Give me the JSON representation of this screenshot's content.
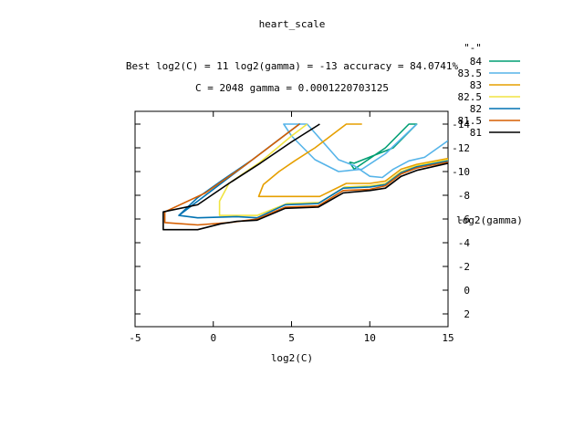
{
  "chart_data": {
    "type": "line",
    "title": "heart_scale",
    "subtitle_line1": "Best log2(C) = 11  log2(gamma) = -13  accuracy = 84.0741%",
    "subtitle_line2": "C = 2048  gamma = 0.0001220703125",
    "xlabel": "log2(C)",
    "ylabel": "log2(gamma)",
    "xlim": [
      -5,
      15
    ],
    "ylim": [
      3,
      -15
    ],
    "xticks": [
      -5,
      0,
      5,
      10,
      15
    ],
    "yticks": [
      2,
      0,
      -2,
      -4,
      -6,
      -8,
      -10,
      -12,
      -14
    ],
    "legend_title": "\"-\"",
    "legend_position": "top-right",
    "series": [
      {
        "name": "84",
        "color": "#009e73",
        "points": [
          [
            8.7,
            -10.8
          ],
          [
            9.0,
            -10.2
          ],
          [
            11.0,
            -12.0
          ],
          [
            12.5,
            -14.0
          ],
          [
            13.0,
            -14.0
          ],
          [
            11.5,
            -12.0
          ],
          [
            9.0,
            -10.7
          ],
          [
            8.7,
            -10.8
          ]
        ]
      },
      {
        "name": "83.5",
        "color": "#56b4e9",
        "points": [
          [
            13.0,
            -14.0
          ],
          [
            11.0,
            -11.5
          ],
          [
            9.5,
            -10.2
          ],
          [
            8.0,
            -10.0
          ],
          [
            6.5,
            -11.0
          ],
          [
            5.0,
            -13.0
          ],
          [
            4.5,
            -14.0
          ],
          [
            6.0,
            -14.0
          ],
          [
            7.0,
            -12.5
          ],
          [
            8.0,
            -11.0
          ],
          [
            9.0,
            -10.5
          ],
          [
            10.0,
            -9.6
          ],
          [
            10.8,
            -9.5
          ],
          [
            11.5,
            -10.2
          ],
          [
            12.5,
            -10.9
          ],
          [
            13.5,
            -11.2
          ],
          [
            15.0,
            -12.6
          ]
        ]
      },
      {
        "name": "83",
        "color": "#e69f00",
        "points": [
          [
            9.5,
            -14.0
          ],
          [
            8.5,
            -14.0
          ],
          [
            6.5,
            -12.0
          ],
          [
            5.2,
            -10.9
          ],
          [
            4.2,
            -10.0
          ],
          [
            3.2,
            -8.9
          ],
          [
            2.9,
            -7.9
          ],
          [
            4.8,
            -7.9
          ],
          [
            6.8,
            -7.9
          ],
          [
            8.5,
            -9.0
          ],
          [
            10.0,
            -9.0
          ],
          [
            11.0,
            -9.2
          ],
          [
            12.0,
            -10.2
          ],
          [
            13.0,
            -10.6
          ],
          [
            15.0,
            -11.1
          ]
        ]
      },
      {
        "name": "82.5",
        "color": "#f0e442",
        "points": [
          [
            6.0,
            -14.0
          ],
          [
            5.0,
            -13.0
          ],
          [
            3.0,
            -10.8
          ],
          [
            1.0,
            -9.0
          ],
          [
            0.4,
            -7.5
          ],
          [
            0.4,
            -6.3
          ],
          [
            2.8,
            -6.3
          ],
          [
            4.7,
            -7.3
          ],
          [
            6.8,
            -7.4
          ],
          [
            8.4,
            -8.7
          ],
          [
            10.0,
            -8.8
          ],
          [
            11.0,
            -9.0
          ],
          [
            12.0,
            -10.0
          ],
          [
            13.0,
            -10.5
          ],
          [
            15.0,
            -11.0
          ]
        ]
      },
      {
        "name": "82",
        "color": "#0072b2",
        "points": [
          [
            -2.2,
            -6.3
          ],
          [
            -1.0,
            -7.8
          ],
          [
            0.5,
            -9.2
          ],
          [
            2.5,
            -11.0
          ],
          [
            4.5,
            -13.0
          ],
          [
            5.5,
            -14.0
          ],
          [
            -2.2,
            -6.3
          ],
          [
            -1.0,
            -6.1
          ],
          [
            1.5,
            -6.2
          ],
          [
            2.8,
            -6.1
          ],
          [
            4.6,
            -7.2
          ],
          [
            6.7,
            -7.3
          ],
          [
            8.3,
            -8.6
          ],
          [
            10.0,
            -8.7
          ],
          [
            11.0,
            -8.9
          ],
          [
            12.0,
            -9.9
          ],
          [
            13.0,
            -10.4
          ],
          [
            15.0,
            -10.9
          ]
        ]
      },
      {
        "name": "81.5",
        "color": "#d55e00",
        "points": [
          [
            5.5,
            -14.0
          ],
          [
            2.0,
            -10.5
          ],
          [
            -0.5,
            -8.2
          ],
          [
            -3.1,
            -6.6
          ],
          [
            -3.1,
            -5.7
          ],
          [
            -1.0,
            -5.5
          ],
          [
            1.0,
            -5.7
          ],
          [
            2.8,
            -6.0
          ],
          [
            4.6,
            -7.0
          ],
          [
            6.7,
            -7.1
          ],
          [
            8.3,
            -8.4
          ],
          [
            10.0,
            -8.5
          ],
          [
            11.0,
            -8.8
          ],
          [
            12.0,
            -9.8
          ],
          [
            13.0,
            -10.3
          ],
          [
            15.0,
            -10.8
          ]
        ]
      },
      {
        "name": "81",
        "color": "#000000",
        "points": [
          [
            6.8,
            -14.0
          ],
          [
            5.0,
            -12.5
          ],
          [
            3.0,
            -10.7
          ],
          [
            1.0,
            -9.0
          ],
          [
            -1.0,
            -7.2
          ],
          [
            -3.2,
            -6.6
          ],
          [
            -3.2,
            -5.1
          ],
          [
            -1.0,
            -5.1
          ],
          [
            0.5,
            -5.6
          ],
          [
            1.5,
            -5.8
          ],
          [
            2.8,
            -5.9
          ],
          [
            4.6,
            -6.9
          ],
          [
            6.7,
            -7.0
          ],
          [
            8.3,
            -8.2
          ],
          [
            10.0,
            -8.4
          ],
          [
            11.0,
            -8.6
          ],
          [
            12.0,
            -9.6
          ],
          [
            13.0,
            -10.1
          ],
          [
            15.0,
            -10.7
          ]
        ]
      }
    ]
  }
}
